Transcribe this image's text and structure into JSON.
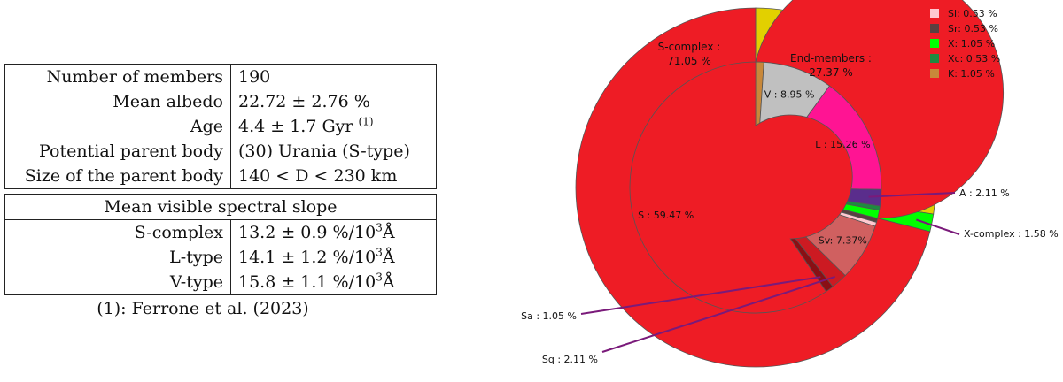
{
  "table": {
    "rows": [
      {
        "label": "Number of members",
        "value": "190"
      },
      {
        "label": "Mean albedo",
        "value": "22.72 ± 2.76 %"
      },
      {
        "label": "Age",
        "value": "4.4 ± 1.7 Gyr ",
        "sup": "(1)"
      },
      {
        "label": "Potential parent body",
        "value": "(30) Urania (S-type)"
      },
      {
        "label": "Size of the parent body",
        "value": "140 < D < 230 km"
      }
    ],
    "slope_header": "Mean visible spectral slope",
    "slope_rows": [
      {
        "label": "S-complex",
        "value": "13.2 ± 0.9 %/10",
        "exp": "3",
        "unit": "Å"
      },
      {
        "label": "L-type",
        "value": "14.1 ± 1.2 %/10",
        "exp": "3",
        "unit": "Å"
      },
      {
        "label": "V-type",
        "value": "15.8 ± 1.1 %/10",
        "exp": "3",
        "unit": "Å"
      }
    ],
    "note": "(1): Ferrone et al. (2023)"
  },
  "chart_data": {
    "type": "pie",
    "variant": "nested-donut",
    "outer_ring": [
      {
        "name": "S-complex",
        "label": "S-complex :",
        "value_label": "71.05 %",
        "value": 71.05,
        "color": "#ee1c25"
      },
      {
        "name": "End-members",
        "label": "End-members :",
        "value_label": "27.37 %",
        "value": 27.37,
        "color": "#e2d000"
      },
      {
        "name": "X-complex",
        "label": "X-complex : 1.58 %",
        "value": 1.58,
        "color": "#00ff00"
      }
    ],
    "inner_ring": [
      {
        "name": "K",
        "value": 1.05,
        "color": "#c8883a",
        "label": ""
      },
      {
        "name": "V",
        "value": 8.95,
        "color": "#c0c0c0",
        "label": "V : 8.95 %"
      },
      {
        "name": "L",
        "value": 15.26,
        "color": "#ff1493",
        "label": "L : 15.26 %"
      },
      {
        "name": "A",
        "value": 2.11,
        "color": "#5a2d8c",
        "label": "A : 2.11 %"
      },
      {
        "name": "Xc",
        "value": 0.53,
        "color": "#1e8a40",
        "label": ""
      },
      {
        "name": "X",
        "value": 1.05,
        "color": "#00ff00",
        "label": ""
      },
      {
        "name": "Sr",
        "value": 0.53,
        "color": "#5a4040",
        "label": ""
      },
      {
        "name": "Sl",
        "value": 0.53,
        "color": "#ffc8d0",
        "label": ""
      },
      {
        "name": "Sv",
        "value": 7.37,
        "color": "#d06060",
        "label": "Sv: 7.37%"
      },
      {
        "name": "Sq",
        "value": 2.11,
        "color": "#cc1a22",
        "label": "Sq : 2.11 %"
      },
      {
        "name": "Sa",
        "value": 1.05,
        "color": "#8a0f14",
        "label": "Sa : 1.05 %"
      },
      {
        "name": "S",
        "value": 59.47,
        "color": "#ee1c25",
        "label": "S : 59.47 %"
      }
    ],
    "legend": [
      {
        "label": "Sl: 0.53 %",
        "color": "#ffc8d0"
      },
      {
        "label": "Sr: 0.53 %",
        "color": "#5a4040"
      },
      {
        "label": "X: 1.05 %",
        "color": "#00ff00"
      },
      {
        "label": "Xc: 0.53 %",
        "color": "#1e8a40"
      },
      {
        "label": "K: 1.05 %",
        "color": "#c8883a"
      }
    ],
    "callout_color": "#7a1a7a",
    "legend_position": "top-right"
  }
}
